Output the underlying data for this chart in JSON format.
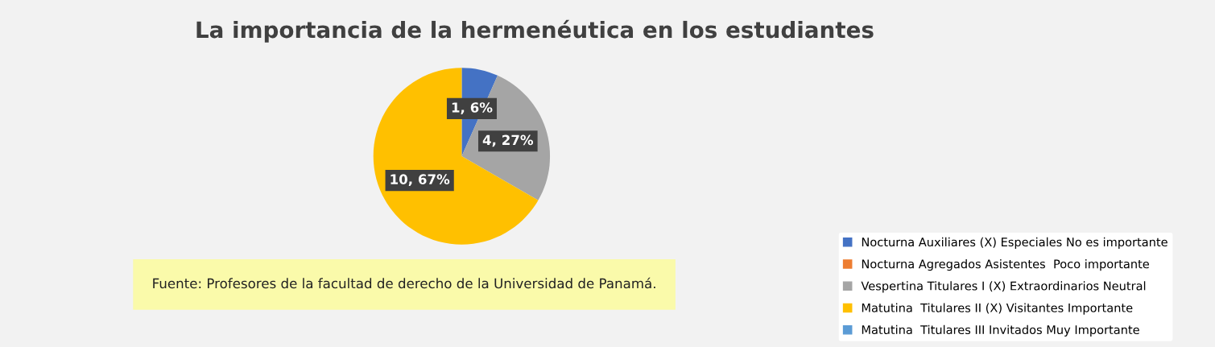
{
  "chart_data": {
    "type": "pie",
    "title": "La importancia de la hermenéutica en los estudiantes",
    "categories": [
      "Nocturna Auxiliares (X) Especiales No es importante",
      "Nocturna Agregados Asistentes  Poco importante",
      "Vespertina Titulares I (X) Extraordinarios Neutral",
      "Matutina  Titulares II (X) Visitantes Importante",
      "Matutina  Titulares III Invitados Muy Importante"
    ],
    "values": [
      1,
      0,
      4,
      10,
      0
    ],
    "value_labels": [
      "1, 6%",
      null,
      "4, 27%",
      "10, 67%",
      null
    ],
    "colors": [
      "#4472c4",
      "#ed7d31",
      "#a5a5a5",
      "#ffc000",
      "#5b9bd5"
    ],
    "legend": "bottom right",
    "annotations": [
      "Fuente: Profesores de la facultad de derecho de la Universidad de Panamá."
    ]
  }
}
